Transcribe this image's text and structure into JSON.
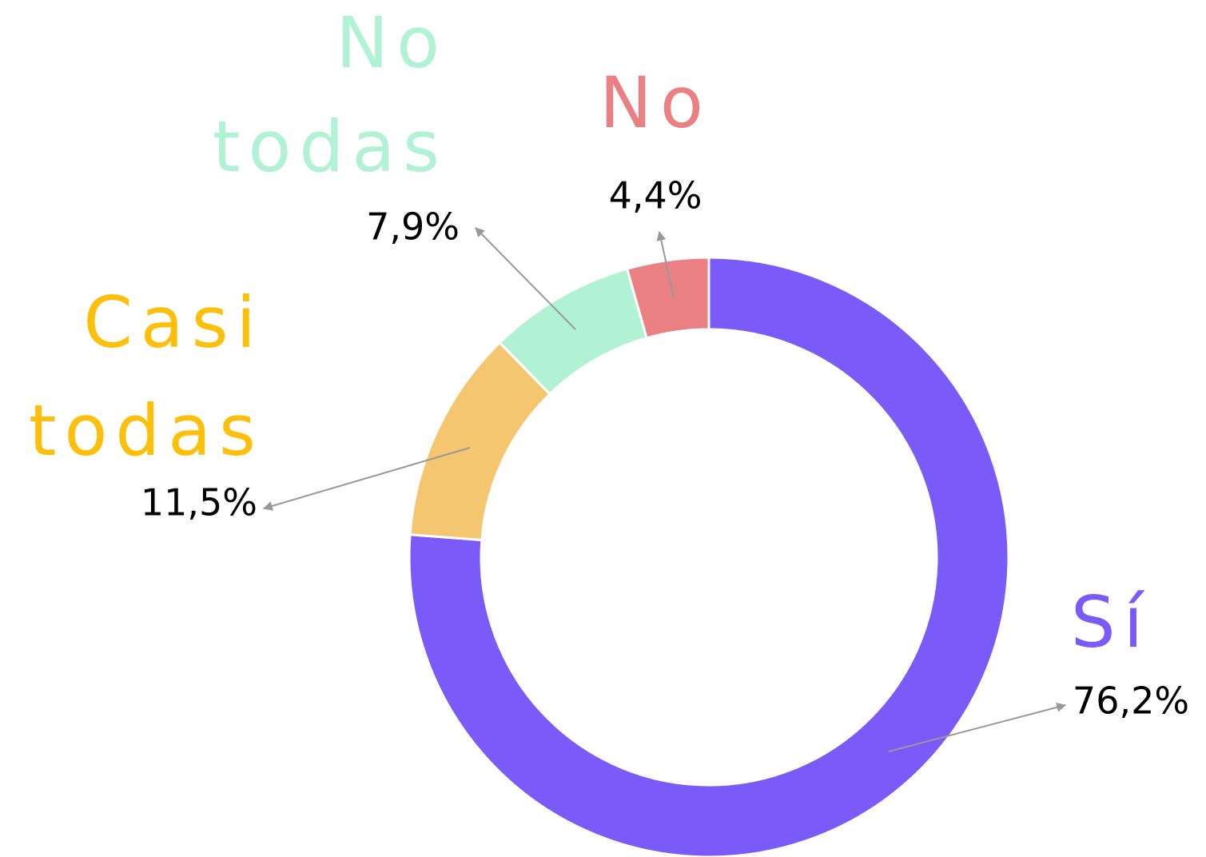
{
  "chart_data": {
    "type": "donut",
    "categories": [
      "Sí",
      "Casi todas",
      "No todas",
      "No"
    ],
    "values": [
      76.2,
      11.5,
      7.9,
      4.4
    ],
    "value_labels": [
      "76,2%",
      "11,5%",
      "7,9%",
      "4,4%"
    ],
    "colors": [
      "#7a5af8",
      "#f3c66f",
      "#b2f2d4",
      "#eb8084"
    ],
    "label_colors": [
      "#7a5af8",
      "#fcbf0c",
      "#b2f2d4",
      "#eb8084"
    ]
  }
}
